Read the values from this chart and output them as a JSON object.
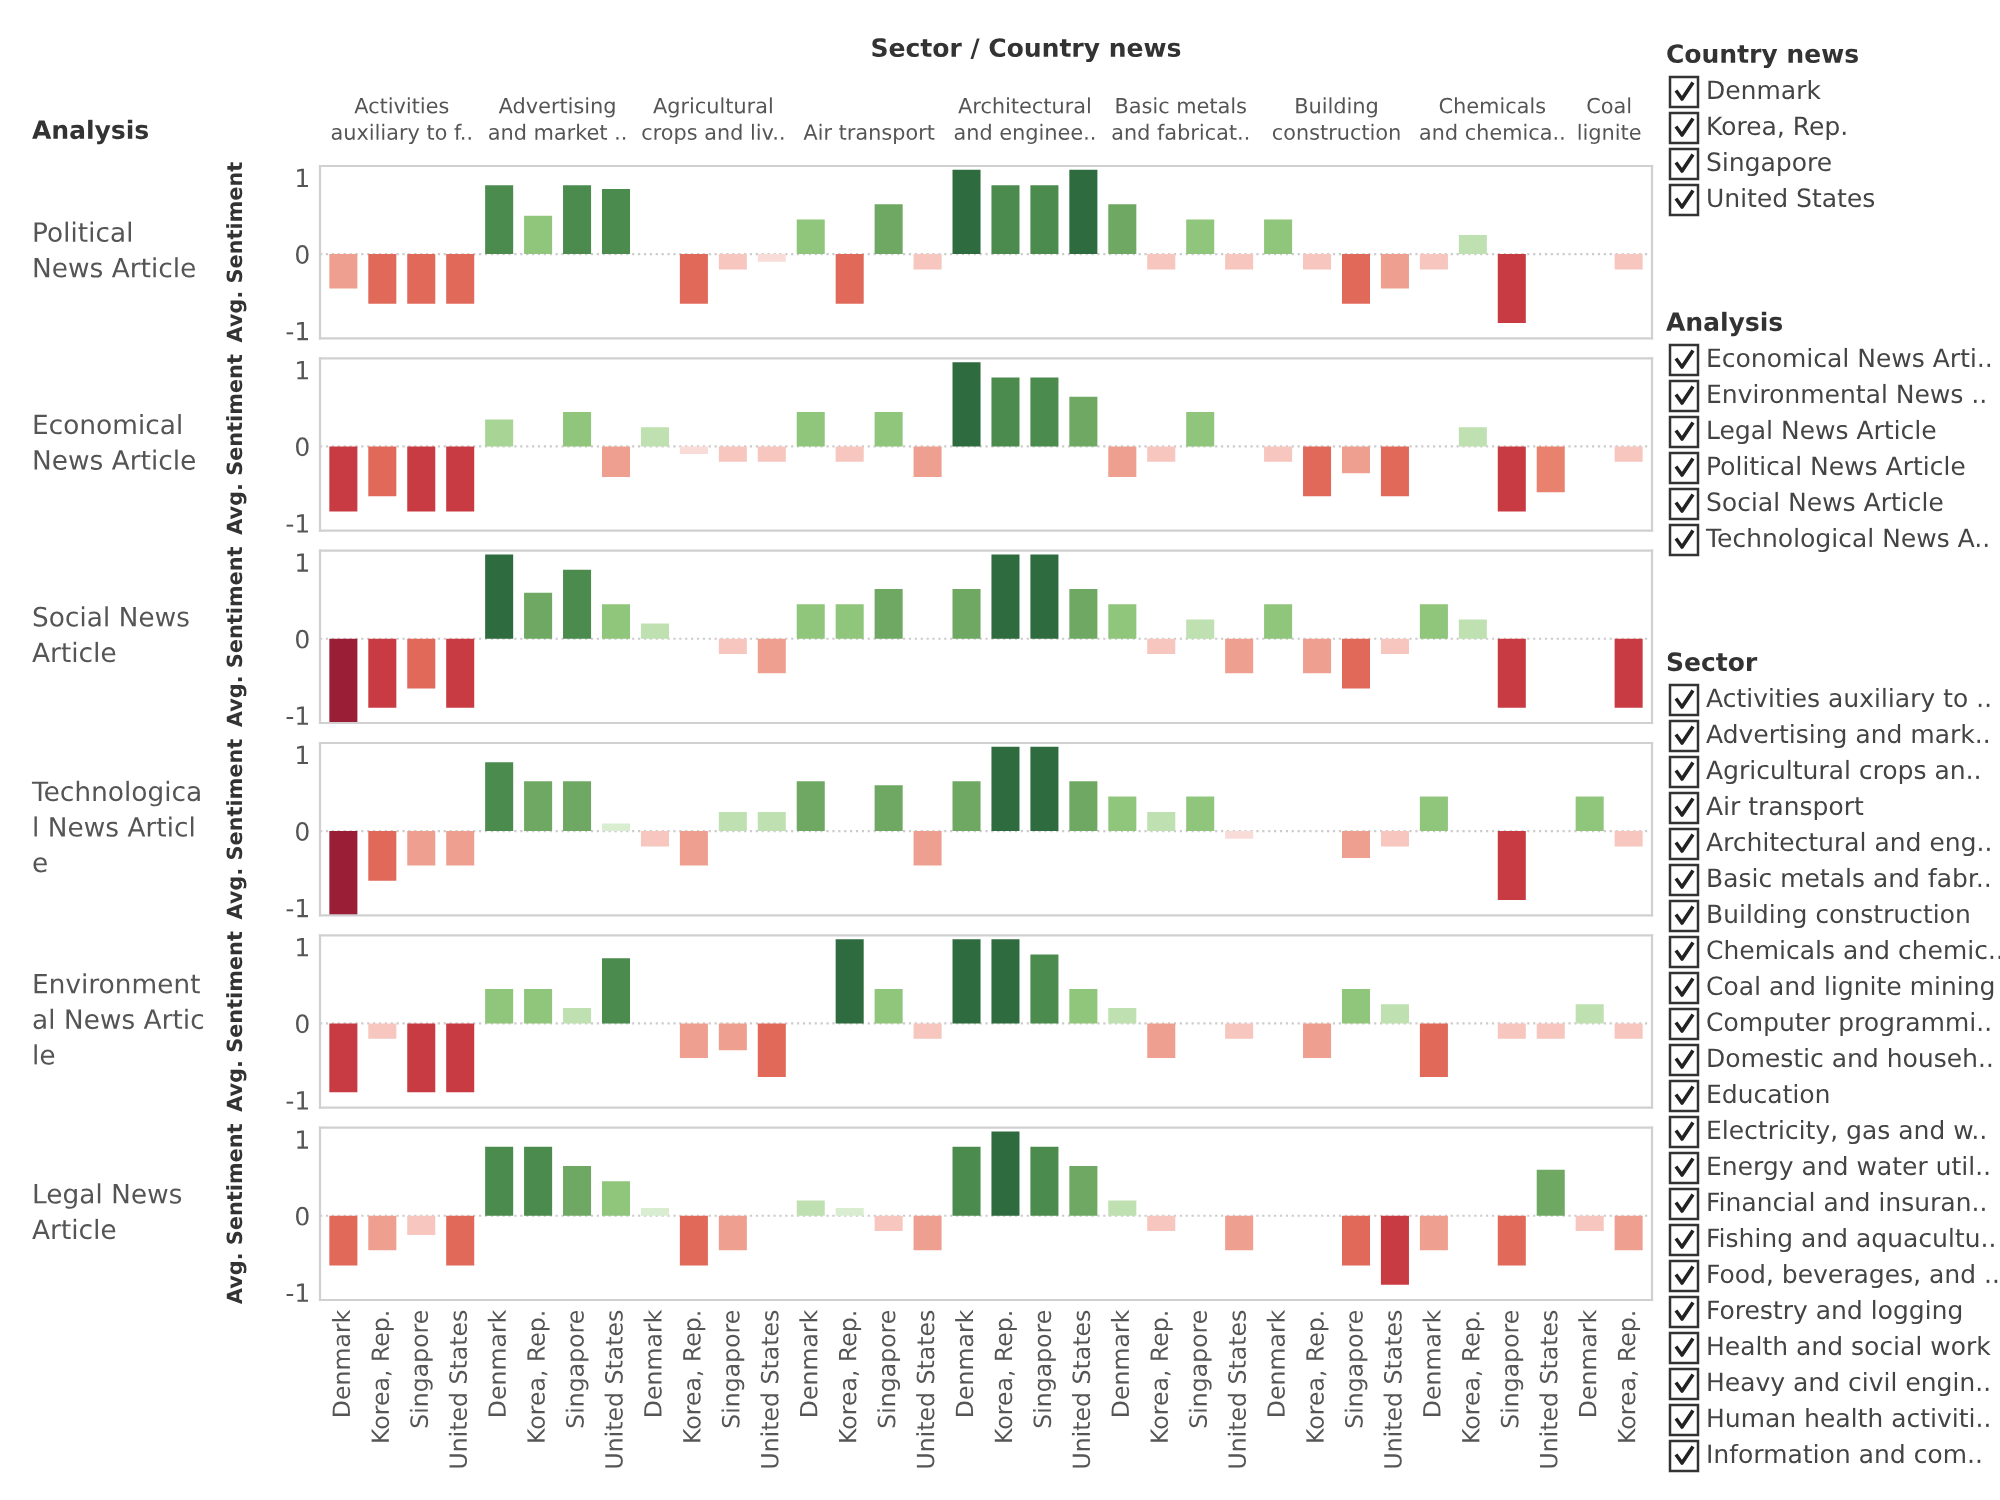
{
  "chart_data": [
    {
      "type": "bar",
      "title": "Political\nNews Article",
      "ylabel": "Avg. Sentiment",
      "categories": [
        null,
        null,
        null,
        null,
        null,
        null,
        null,
        null,
        null,
        null,
        null,
        null,
        null,
        null,
        null,
        null,
        null,
        null,
        null,
        null,
        null,
        null,
        null,
        null,
        null,
        null,
        null,
        null,
        null,
        null,
        null,
        null,
        null,
        null
      ],
      "values": [
        -0.45,
        -0.65,
        -0.65,
        -0.65,
        0.9,
        0.5,
        0.9,
        0.85,
        null,
        -0.65,
        -0.2,
        -0.1,
        0.45,
        -0.65,
        0.65,
        -0.2,
        1.1,
        0.9,
        0.9,
        1.1,
        0.65,
        -0.2,
        0.45,
        -0.2,
        0.45,
        -0.2,
        -0.65,
        -0.45,
        -0.2,
        0.25,
        -0.9,
        null,
        null,
        -0.2
      ],
      "colors": [
        "#ee9f90",
        "#e1695a",
        "#e1695a",
        "#e1695a",
        "#4b8b4d",
        "#8fc67c",
        "#4b8b4d",
        "#4b8b4d",
        null,
        "#e1695a",
        "#f6c6bf",
        "#f9dcd8",
        "#8fc67c",
        "#e1695a",
        "#6ea862",
        "#f6c6bf",
        "#2e6b3f",
        "#4b8b4d",
        "#4b8b4d",
        "#2e6b3f",
        "#6ea862",
        "#f6c6bf",
        "#8fc67c",
        "#f6c6bf",
        "#8fc67c",
        "#f6c6bf",
        "#e1695a",
        "#ee9f90",
        "#f6c6bf",
        "#bfe0b1",
        "#c93b42",
        null,
        null,
        "#f6c6bf"
      ],
      "ylim": [
        -1.1,
        1.15
      ],
      "yticks": [
        -1,
        0,
        1
      ],
      "tick_labels": "y",
      "ref_lines": [
        {
          "axis": "y",
          "value": 0,
          "color": "#cccccc",
          "line_style": "dotted"
        }
      ],
      "annotations": [
        "Sector / Country news",
        "Analysis",
        "Activities\nauxiliary to f..",
        "Advertising\nand market ..",
        "Agricultural\ncrops and liv..",
        "Air transport",
        "Architectural\nand enginee..",
        "Basic metals\nand fabricat..",
        "Building\nconstruction",
        "Chemicals\nand chemica..",
        "Coal\nlignite"
      ]
    },
    {
      "type": "bar",
      "title": "Economical\nNews Article",
      "ylabel": "Avg. Sentiment",
      "categories": [
        null,
        null,
        null,
        null,
        null,
        null,
        null,
        null,
        null,
        null,
        null,
        null,
        null,
        null,
        null,
        null,
        null,
        null,
        null,
        null,
        null,
        null,
        null,
        null,
        null,
        null,
        null,
        null,
        null,
        null,
        null,
        null,
        null,
        null
      ],
      "values": [
        -0.85,
        -0.65,
        -0.85,
        -0.85,
        0.35,
        null,
        0.45,
        -0.4,
        0.25,
        -0.1,
        -0.2,
        -0.2,
        0.45,
        -0.2,
        0.45,
        -0.4,
        1.1,
        0.9,
        0.9,
        0.65,
        -0.4,
        -0.2,
        0.45,
        null,
        -0.2,
        -0.65,
        -0.35,
        -0.65,
        null,
        0.25,
        -0.85,
        -0.6,
        null,
        -0.2
      ],
      "colors": [
        "#c93b42",
        "#e1695a",
        "#c93b42",
        "#c93b42",
        "#a8d596",
        null,
        "#8fc67c",
        "#ee9f90",
        "#bfe0b1",
        "#f9dcd8",
        "#f6c6bf",
        "#f6c6bf",
        "#8fc67c",
        "#f6c6bf",
        "#8fc67c",
        "#ee9f90",
        "#2e6b3f",
        "#4b8b4d",
        "#4b8b4d",
        "#6ea862",
        "#ee9f90",
        "#f6c6bf",
        "#8fc67c",
        null,
        "#f6c6bf",
        "#e1695a",
        "#ee9f90",
        "#e1695a",
        null,
        "#bfe0b1",
        "#c93b42",
        "#e8826f",
        null,
        "#f6c6bf"
      ],
      "ylim": [
        -1.1,
        1.15
      ],
      "yticks": [
        -1,
        0,
        1
      ],
      "tick_labels": "y",
      "ref_lines": [
        {
          "axis": "y",
          "value": 0,
          "color": "#cccccc",
          "line_style": "dotted"
        }
      ]
    },
    {
      "type": "bar",
      "title": "Social News\nArticle",
      "ylabel": "Avg. Sentiment",
      "categories": [
        null,
        null,
        null,
        null,
        null,
        null,
        null,
        null,
        null,
        null,
        null,
        null,
        null,
        null,
        null,
        null,
        null,
        null,
        null,
        null,
        null,
        null,
        null,
        null,
        null,
        null,
        null,
        null,
        null,
        null,
        null,
        null,
        null,
        null
      ],
      "values": [
        -1.1,
        -0.9,
        -0.65,
        -0.9,
        1.1,
        0.6,
        0.9,
        0.45,
        0.2,
        null,
        -0.2,
        -0.45,
        0.45,
        0.45,
        0.65,
        null,
        0.65,
        1.1,
        1.1,
        0.65,
        0.45,
        -0.2,
        0.25,
        -0.45,
        0.45,
        -0.45,
        -0.65,
        -0.2,
        0.45,
        0.25,
        -0.9,
        null,
        null,
        -0.9
      ],
      "colors": [
        "#9b1e37",
        "#c93b42",
        "#e1695a",
        "#c93b42",
        "#2e6b3f",
        "#6ea862",
        "#4b8b4d",
        "#8fc67c",
        "#bfe0b1",
        null,
        "#f6c6bf",
        "#ee9f90",
        "#8fc67c",
        "#8fc67c",
        "#6ea862",
        null,
        "#6ea862",
        "#2e6b3f",
        "#2e6b3f",
        "#6ea862",
        "#8fc67c",
        "#f6c6bf",
        "#bfe0b1",
        "#ee9f90",
        "#8fc67c",
        "#ee9f90",
        "#e1695a",
        "#f6c6bf",
        "#8fc67c",
        "#bfe0b1",
        "#c93b42",
        null,
        null,
        "#c93b42"
      ],
      "ylim": [
        -1.1,
        1.15
      ],
      "yticks": [
        -1,
        0,
        1
      ],
      "tick_labels": "y",
      "ref_lines": [
        {
          "axis": "y",
          "value": 0,
          "color": "#cccccc",
          "line_style": "dotted"
        }
      ]
    },
    {
      "type": "bar",
      "title": "Technologica\nl News Articl\ne",
      "ylabel": "Avg. Sentiment",
      "categories": [
        null,
        null,
        null,
        null,
        null,
        null,
        null,
        null,
        null,
        null,
        null,
        null,
        null,
        null,
        null,
        null,
        null,
        null,
        null,
        null,
        null,
        null,
        null,
        null,
        null,
        null,
        null,
        null,
        null,
        null,
        null,
        null,
        null,
        null
      ],
      "values": [
        -1.1,
        -0.65,
        -0.45,
        -0.45,
        0.9,
        0.65,
        0.65,
        0.1,
        -0.2,
        -0.45,
        0.25,
        0.25,
        0.65,
        null,
        0.6,
        -0.45,
        0.65,
        1.1,
        1.1,
        0.65,
        0.45,
        0.25,
        0.45,
        -0.1,
        null,
        null,
        -0.35,
        -0.2,
        0.45,
        null,
        -0.9,
        null,
        0.45,
        -0.2
      ],
      "colors": [
        "#9b1e37",
        "#e1695a",
        "#ee9f90",
        "#ee9f90",
        "#4b8b4d",
        "#6ea862",
        "#6ea862",
        "#d9eed0",
        "#f6c6bf",
        "#ee9f90",
        "#bfe0b1",
        "#bfe0b1",
        "#6ea862",
        null,
        "#6ea862",
        "#ee9f90",
        "#6ea862",
        "#2e6b3f",
        "#2e6b3f",
        "#6ea862",
        "#8fc67c",
        "#bfe0b1",
        "#8fc67c",
        "#f9dcd8",
        null,
        null,
        "#ee9f90",
        "#f6c6bf",
        "#8fc67c",
        null,
        "#c93b42",
        null,
        "#8fc67c",
        "#f6c6bf"
      ],
      "ylim": [
        -1.1,
        1.15
      ],
      "yticks": [
        -1,
        0,
        1
      ],
      "tick_labels": "y",
      "ref_lines": [
        {
          "axis": "y",
          "value": 0,
          "color": "#cccccc",
          "line_style": "dotted"
        }
      ]
    },
    {
      "type": "bar",
      "title": "Environment\nal News Artic\nle",
      "ylabel": "Avg. Sentiment",
      "categories": [
        null,
        null,
        null,
        null,
        null,
        null,
        null,
        null,
        null,
        null,
        null,
        null,
        null,
        null,
        null,
        null,
        null,
        null,
        null,
        null,
        null,
        null,
        null,
        null,
        null,
        null,
        null,
        null,
        null,
        null,
        null,
        null,
        null,
        null
      ],
      "values": [
        -0.9,
        -0.2,
        -0.9,
        -0.9,
        0.45,
        0.45,
        0.2,
        0.85,
        null,
        -0.45,
        -0.35,
        -0.7,
        null,
        1.1,
        0.45,
        -0.2,
        1.1,
        1.1,
        0.9,
        0.45,
        0.2,
        -0.45,
        null,
        -0.2,
        null,
        -0.45,
        0.45,
        0.25,
        -0.7,
        null,
        -0.2,
        -0.2,
        0.25,
        -0.2
      ],
      "colors": [
        "#c93b42",
        "#f6c6bf",
        "#c93b42",
        "#c93b42",
        "#8fc67c",
        "#8fc67c",
        "#bfe0b1",
        "#4b8b4d",
        null,
        "#ee9f90",
        "#ee9f90",
        "#e1695a",
        null,
        "#2e6b3f",
        "#8fc67c",
        "#f6c6bf",
        "#2e6b3f",
        "#2e6b3f",
        "#4b8b4d",
        "#8fc67c",
        "#bfe0b1",
        "#ee9f90",
        null,
        "#f6c6bf",
        null,
        "#ee9f90",
        "#8fc67c",
        "#bfe0b1",
        "#e1695a",
        null,
        "#f6c6bf",
        "#f6c6bf",
        "#bfe0b1",
        "#f6c6bf"
      ],
      "ylim": [
        -1.1,
        1.15
      ],
      "yticks": [
        -1,
        0,
        1
      ],
      "tick_labels": "y",
      "ref_lines": [
        {
          "axis": "y",
          "value": 0,
          "color": "#cccccc",
          "line_style": "dotted"
        }
      ]
    },
    {
      "type": "bar",
      "title": "Legal News\nArticle",
      "ylabel": "Avg. Sentiment",
      "categories": [
        "Denmark",
        "Korea, Rep.",
        "Singapore",
        "United States",
        "Denmark",
        "Korea, Rep.",
        "Singapore",
        "United States",
        "Denmark",
        "Korea, Rep.",
        "Singapore",
        "United States",
        "Denmark",
        "Korea, Rep.",
        "Singapore",
        "United States",
        "Denmark",
        "Korea, Rep.",
        "Singapore",
        "United States",
        "Denmark",
        "Korea, Rep.",
        "Singapore",
        "United States",
        "Denmark",
        "Korea, Rep.",
        "Singapore",
        "United States",
        "Denmark",
        "Korea, Rep.",
        "Singapore",
        "United States",
        "Denmark",
        "Korea, Rep."
      ],
      "values": [
        -0.65,
        -0.45,
        -0.25,
        -0.65,
        0.9,
        0.9,
        0.65,
        0.45,
        0.1,
        -0.65,
        -0.45,
        null,
        0.2,
        0.1,
        -0.2,
        -0.45,
        0.9,
        1.1,
        0.9,
        0.65,
        0.2,
        -0.2,
        null,
        -0.45,
        null,
        null,
        -0.65,
        -0.9,
        -0.45,
        null,
        -0.65,
        0.6,
        -0.2,
        -0.45
      ],
      "colors": [
        "#e1695a",
        "#ee9f90",
        "#f6c6bf",
        "#e1695a",
        "#4b8b4d",
        "#4b8b4d",
        "#6ea862",
        "#8fc67c",
        "#d9eed0",
        "#e1695a",
        "#ee9f90",
        null,
        "#bfe0b1",
        "#d9eed0",
        "#f6c6bf",
        "#ee9f90",
        "#4b8b4d",
        "#2e6b3f",
        "#4b8b4d",
        "#6ea862",
        "#bfe0b1",
        "#f6c6bf",
        null,
        "#ee9f90",
        null,
        null,
        "#e1695a",
        "#c93b42",
        "#ee9f90",
        null,
        "#e1695a",
        "#6ea862",
        "#f6c6bf",
        "#ee9f90"
      ],
      "ylim": [
        -1.1,
        1.15
      ],
      "yticks": [
        -1,
        0,
        1
      ],
      "ref_lines": [
        {
          "axis": "y",
          "value": 0,
          "color": "#cccccc",
          "line_style": "dotted"
        }
      ]
    },
    {
      "type": "other",
      "title": "Country news",
      "annotations": [
        "Denmark",
        "Korea, Rep.",
        "Singapore",
        "United States"
      ]
    },
    {
      "type": "other",
      "title": "Analysis",
      "annotations": [
        "Economical News Arti..",
        "Environmental News ..",
        "Legal News Article",
        "Political News Article",
        "Social News Article",
        "Technological News A.."
      ]
    },
    {
      "type": "other",
      "title": "Sector",
      "annotations": [
        "Activities auxiliary to ..",
        "Advertising and mark..",
        "Agricultural crops an..",
        "Air transport",
        "Architectural and eng..",
        "Basic metals and fabr..",
        "Building construction",
        "Chemicals and chemic..",
        "Coal and lignite mining",
        "Computer programmi..",
        "Domestic and househ..",
        "Education",
        "Electricity, gas and w..",
        "Energy and water util..",
        "Financial and insuran..",
        "Fishing and aquacultu..",
        "Food, beverages, and ..",
        "Forestry and logging",
        "Health and social work",
        "Heavy and civil engin..",
        "Human health activiti..",
        "Information and com.."
      ]
    }
  ]
}
